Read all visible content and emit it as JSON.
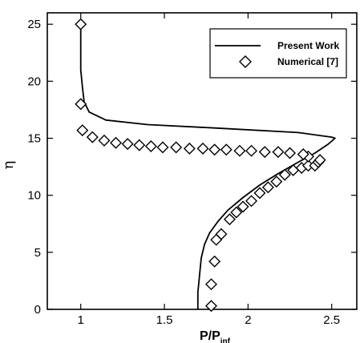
{
  "chart_data": {
    "type": "line",
    "xlabel": {
      "main": "P/P",
      "sub": "inf"
    },
    "ylabel": "η",
    "xlim": [
      0.8,
      2.65
    ],
    "ylim": [
      0,
      26
    ],
    "xticks": [
      1,
      1.5,
      2,
      2.5
    ],
    "xtick_labels": [
      "1",
      "1.5",
      "2",
      "2.5"
    ],
    "yticks": [
      0,
      5,
      10,
      15,
      20,
      25
    ],
    "ytick_labels": [
      "0",
      "5",
      "10",
      "15",
      "20",
      "25"
    ],
    "grid": false,
    "legend_position": "top-right",
    "series": [
      {
        "name": "Present Work",
        "style": "solid-line",
        "color": "#000000",
        "x": [
          1.7,
          1.7,
          1.71,
          1.72,
          1.74,
          1.77,
          1.82,
          1.88,
          1.97,
          2.07,
          2.18,
          2.3,
          2.4,
          2.48,
          2.52,
          2.5,
          2.3,
          1.8,
          1.4,
          1.15,
          1.05,
          1.02,
          1.01,
          1.0,
          1.0,
          1.0
        ],
        "y": [
          0.0,
          1.5,
          3.0,
          4.5,
          5.7,
          6.7,
          7.7,
          8.7,
          9.8,
          10.9,
          11.9,
          12.9,
          13.7,
          14.5,
          15.0,
          15.1,
          15.5,
          15.9,
          16.2,
          16.6,
          17.3,
          18.2,
          19.5,
          21.0,
          23.5,
          25.0
        ]
      },
      {
        "name": "Numerical [7]",
        "style": "diamond-marker",
        "color": "#000000",
        "x": [
          1.78,
          1.78,
          1.8,
          1.81,
          1.84,
          1.89,
          1.93,
          1.97,
          2.02,
          2.07,
          2.12,
          2.17,
          2.22,
          2.27,
          2.32,
          2.36,
          2.4,
          2.42,
          2.43,
          2.36,
          2.33,
          2.25,
          2.18,
          2.1,
          2.02,
          1.95,
          1.87,
          1.8,
          1.73,
          1.65,
          1.57,
          1.49,
          1.42,
          1.35,
          1.28,
          1.21,
          1.14,
          1.07,
          1.01,
          1.0,
          1.0
        ],
        "y": [
          0.3,
          2.2,
          4.2,
          6.1,
          6.6,
          7.9,
          8.5,
          9.0,
          9.5,
          10.2,
          10.7,
          11.2,
          11.8,
          12.2,
          12.4,
          12.6,
          12.6,
          12.9,
          13.1,
          13.4,
          13.6,
          13.7,
          13.8,
          13.8,
          13.9,
          13.9,
          14.0,
          14.0,
          14.1,
          14.1,
          14.2,
          14.2,
          14.3,
          14.4,
          14.5,
          14.6,
          14.8,
          15.1,
          15.7,
          18.0,
          25.0
        ]
      }
    ]
  }
}
